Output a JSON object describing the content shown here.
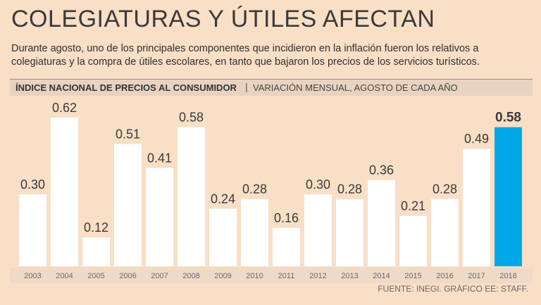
{
  "header": {
    "title": "COLEGIATURAS Y ÚTILES AFECTAN",
    "subtitle": "Durante agosto, uno de los principales componentes que incidieron en la inflación fueron los relativos  a colegiaturas y la compra de útiles escolares, en tanto que bajaron los precios de los servicios turísticos."
  },
  "band": {
    "bold_label": "ÍNDICE NACIONAL DE PRECIOS AL CONSUMIDOR",
    "separator": "|",
    "light_label": "VARIACIÓN MENSUAL, AGOSTO DE CADA AÑO"
  },
  "footer": {
    "source": "FUENTE: INEGI. GRÁFICO EE: STAFF."
  },
  "colors": {
    "bar": "#ffffff",
    "highlight": "#00a7e7",
    "label": "#3a3a3a",
    "tick": "#6b6b6b"
  },
  "chart_data": {
    "type": "bar",
    "title": "ÍNDICE NACIONAL DE PRECIOS AL CONSUMIDOR",
    "subtitle": "VARIACIÓN MENSUAL, AGOSTO DE CADA AÑO",
    "categories": [
      "2003",
      "2004",
      "2005",
      "2006",
      "2007",
      "2008",
      "2009",
      "2010",
      "2011",
      "2012",
      "2013",
      "2014",
      "2015",
      "2016",
      "2017",
      "2018"
    ],
    "values": [
      0.3,
      0.62,
      0.12,
      0.51,
      0.41,
      0.58,
      0.24,
      0.28,
      0.16,
      0.3,
      0.28,
      0.36,
      0.21,
      0.28,
      0.49,
      0.58
    ],
    "labels": [
      "0.30",
      "0.62",
      "0.12",
      "0.51",
      "0.41",
      "0.58",
      "0.24",
      "0.28",
      "0.16",
      "0.30",
      "0.28",
      "0.36",
      "0.21",
      "0.28",
      "0.49",
      "0.58"
    ],
    "highlight_category": "2018",
    "ylim": [
      0,
      0.62
    ],
    "xlabel": "",
    "ylabel": "",
    "grid": false
  }
}
